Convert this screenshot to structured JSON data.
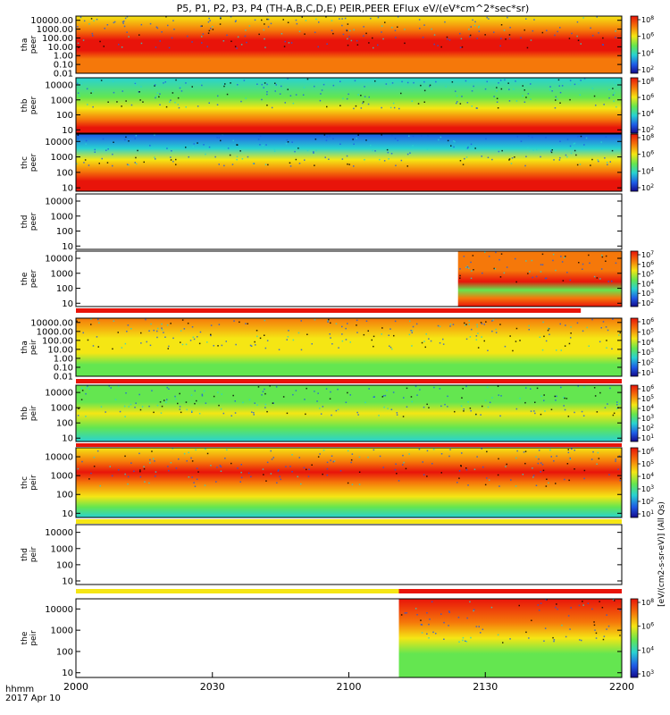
{
  "chart_data": {
    "type": "heatmap",
    "title": "P5, P1, P2, P3, P4 (TH-A,B,C,D,E) PEIR,PEER EFlux eV/(eV*cm^2*sec*sr)",
    "x": {
      "ticks": [
        "2000",
        "2030",
        "2100",
        "2130",
        "2200"
      ],
      "label_line1": "hhmm",
      "label_line2": "2017 Apr 10",
      "range_minutes": [
        0,
        120
      ]
    },
    "colorbar_label": "[eV/(cm2-s-sr-eV)] (All Qs)",
    "colors": {
      "red": "#e8140a",
      "orange": "#f5780a",
      "yellow": "#f5e614",
      "green": "#64e650",
      "cyan": "#28d2d2",
      "blue": "#1e5ae6",
      "navy": "#140a8c",
      "black": "#000000"
    },
    "panels": [
      {
        "id": "tha-peer",
        "label": "tha peer",
        "ticks": [
          "10000.00",
          "1000.00",
          "100.00",
          "10.00",
          "1.00",
          "0.10",
          "0.01"
        ],
        "ylim": [
          0.01,
          30000
        ],
        "log": true,
        "colorbar_ticks": [
          "10^8",
          "10^6",
          "10^4",
          "10^2"
        ],
        "has_data": true,
        "data_start_min": 0,
        "data_end_min": 120
      },
      {
        "id": "thb-peer",
        "label": "thb peer",
        "ticks": [
          "10000",
          "1000",
          "100",
          "10"
        ],
        "ylim": [
          6,
          30000
        ],
        "log": true,
        "colorbar_ticks": [
          "10^8",
          "10^6",
          "10^4",
          "10^2"
        ],
        "has_data": true,
        "data_start_min": 0,
        "data_end_min": 120
      },
      {
        "id": "thc-peer",
        "label": "thc peer",
        "ticks": [
          "10000",
          "1000",
          "100",
          "10"
        ],
        "ylim": [
          6,
          30000
        ],
        "log": true,
        "colorbar_ticks": [
          "10^8",
          "10^6",
          "10^4",
          "10^2"
        ],
        "has_data": true,
        "data_start_min": 0,
        "data_end_min": 120
      },
      {
        "id": "thd-peer",
        "label": "thd peer",
        "ticks": [
          "10000",
          "1000",
          "100",
          "10"
        ],
        "ylim": [
          6,
          30000
        ],
        "log": true,
        "colorbar_ticks": [],
        "has_data": false
      },
      {
        "id": "the-peer",
        "label": "the peer",
        "ticks": [
          "10000",
          "1000",
          "100",
          "10"
        ],
        "ylim": [
          6,
          30000
        ],
        "log": true,
        "colorbar_ticks": [
          "10^7",
          "10^6",
          "10^5",
          "10^4",
          "10^3",
          "10^2"
        ],
        "has_data": true,
        "data_start_min": 84,
        "data_end_min": 120
      },
      {
        "id": "tha-peir",
        "label": "tha peir",
        "ticks": [
          "10000.00",
          "1000.00",
          "100.00",
          "10.00",
          "1.00",
          "0.10",
          "0.01"
        ],
        "ylim": [
          0.01,
          30000
        ],
        "log": true,
        "colorbar_ticks": [
          "10^6",
          "10^5",
          "10^4",
          "10^3",
          "10^2",
          "10^1"
        ],
        "has_data": true,
        "data_start_min": 0,
        "data_end_min": 120
      },
      {
        "id": "thb-peir",
        "label": "thb peir",
        "ticks": [
          "10000",
          "1000",
          "100",
          "10"
        ],
        "ylim": [
          6,
          30000
        ],
        "log": true,
        "colorbar_ticks": [
          "10^6",
          "10^5",
          "10^4",
          "10^3",
          "10^2",
          "10^1"
        ],
        "has_data": true,
        "data_start_min": 0,
        "data_end_min": 120
      },
      {
        "id": "thc-peir",
        "label": "thc peir",
        "ticks": [
          "10000",
          "1000",
          "100",
          "10"
        ],
        "ylim": [
          6,
          30000
        ],
        "log": true,
        "colorbar_ticks": [
          "10^6",
          "10^5",
          "10^4",
          "10^3",
          "10^2",
          "10^1"
        ],
        "has_data": true,
        "data_start_min": 0,
        "data_end_min": 120
      },
      {
        "id": "thd-peir",
        "label": "thd peir",
        "ticks": [
          "10000",
          "1000",
          "100",
          "10"
        ],
        "ylim": [
          6,
          30000
        ],
        "log": true,
        "colorbar_ticks": [],
        "has_data": false
      },
      {
        "id": "the-peir",
        "label": "the peir",
        "ticks": [
          "10000",
          "1000",
          "100",
          "10"
        ],
        "ylim": [
          6,
          30000
        ],
        "log": true,
        "colorbar_ticks": [
          "10^8",
          "10^6",
          "10^4",
          "10^3"
        ],
        "has_data": true,
        "data_start_min": 71,
        "data_end_min": 120
      }
    ]
  }
}
